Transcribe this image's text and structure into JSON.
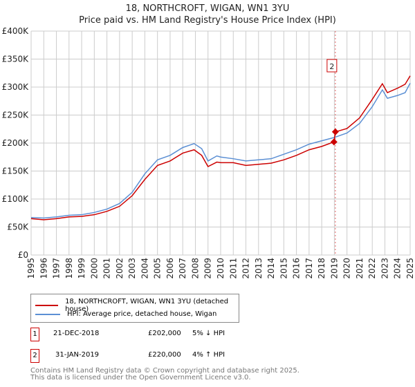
{
  "chart_data": {
    "type": "line",
    "title": "18, NORTHCROFT, WIGAN, WN1 3YU",
    "subtitle": "Price paid vs. HM Land Registry's House Price Index (HPI)",
    "xlim": [
      1995,
      2025
    ],
    "ylim": [
      0,
      400000
    ],
    "x_ticks": [
      "1995",
      "1996",
      "1997",
      "1998",
      "1999",
      "2000",
      "2001",
      "2002",
      "2003",
      "2004",
      "2005",
      "2006",
      "2007",
      "2008",
      "2009",
      "2010",
      "2011",
      "2012",
      "2013",
      "2014",
      "2015",
      "2016",
      "2017",
      "2018",
      "2019",
      "2020",
      "2021",
      "2022",
      "2023",
      "2024",
      "2025"
    ],
    "y_ticks": [
      {
        "v": 0,
        "l": "£0"
      },
      {
        "v": 50000,
        "l": "£50K"
      },
      {
        "v": 100000,
        "l": "£100K"
      },
      {
        "v": 150000,
        "l": "£150K"
      },
      {
        "v": 200000,
        "l": "£200K"
      },
      {
        "v": 250000,
        "l": "£250K"
      },
      {
        "v": 300000,
        "l": "£300K"
      },
      {
        "v": 350000,
        "l": "£350K"
      },
      {
        "v": 400000,
        "l": "£400K"
      }
    ],
    "grid": true,
    "series": [
      {
        "name": "18, NORTHCROFT, WIGAN, WN1 3YU (detached house)",
        "color": "#cc0000",
        "points": [
          [
            1995,
            65000
          ],
          [
            1996,
            63000
          ],
          [
            1997,
            65000
          ],
          [
            1998,
            68000
          ],
          [
            1999,
            69000
          ],
          [
            2000,
            72000
          ],
          [
            2001,
            78000
          ],
          [
            2002,
            87000
          ],
          [
            2003,
            106000
          ],
          [
            2004,
            135000
          ],
          [
            2005,
            160000
          ],
          [
            2006,
            168000
          ],
          [
            2007,
            182000
          ],
          [
            2007.9,
            188000
          ],
          [
            2008.5,
            178000
          ],
          [
            2009,
            158000
          ],
          [
            2009.7,
            166000
          ],
          [
            2010,
            165000
          ],
          [
            2011,
            165000
          ],
          [
            2012,
            160000
          ],
          [
            2013,
            162000
          ],
          [
            2014,
            164000
          ],
          [
            2015,
            170000
          ],
          [
            2016,
            178000
          ],
          [
            2017,
            188000
          ],
          [
            2018,
            194000
          ],
          [
            2018.97,
            202000
          ],
          [
            2019.08,
            220000
          ],
          [
            2020,
            226000
          ],
          [
            2021,
            245000
          ],
          [
            2022,
            278000
          ],
          [
            2022.8,
            306000
          ],
          [
            2023.2,
            290000
          ],
          [
            2024,
            298000
          ],
          [
            2024.6,
            305000
          ],
          [
            2025,
            320000
          ]
        ]
      },
      {
        "name": "HPI: Average price, detached house, Wigan",
        "color": "#5b8fd4",
        "points": [
          [
            1995,
            67000
          ],
          [
            1996,
            66000
          ],
          [
            1997,
            68000
          ],
          [
            1998,
            71000
          ],
          [
            1999,
            72000
          ],
          [
            2000,
            76000
          ],
          [
            2001,
            82000
          ],
          [
            2002,
            92000
          ],
          [
            2003,
            112000
          ],
          [
            2004,
            145000
          ],
          [
            2005,
            170000
          ],
          [
            2006,
            178000
          ],
          [
            2007,
            192000
          ],
          [
            2007.9,
            199000
          ],
          [
            2008.5,
            190000
          ],
          [
            2009,
            168000
          ],
          [
            2009.7,
            177000
          ],
          [
            2010,
            175000
          ],
          [
            2011,
            172000
          ],
          [
            2012,
            168000
          ],
          [
            2013,
            170000
          ],
          [
            2014,
            172000
          ],
          [
            2015,
            180000
          ],
          [
            2016,
            188000
          ],
          [
            2017,
            198000
          ],
          [
            2018,
            204000
          ],
          [
            2019,
            210000
          ],
          [
            2020,
            218000
          ],
          [
            2021,
            235000
          ],
          [
            2022,
            265000
          ],
          [
            2022.8,
            295000
          ],
          [
            2023.2,
            280000
          ],
          [
            2024,
            285000
          ],
          [
            2024.6,
            290000
          ],
          [
            2025,
            307000
          ]
        ]
      }
    ],
    "annotations": [
      {
        "label": "1",
        "x": 2018.97,
        "y": 202000
      },
      {
        "label": "2",
        "x": 2019.08,
        "y": 220000
      }
    ]
  },
  "transactions": [
    {
      "n": "1",
      "date": "21-DEC-2018",
      "price": "£202,000",
      "hpi": "5% ↓ HPI"
    },
    {
      "n": "2",
      "date": "31-JAN-2019",
      "price": "£220,000",
      "hpi": "4% ↑ HPI"
    }
  ],
  "footer": [
    "Contains HM Land Registry data © Crown copyright and database right 2025.",
    "This data is licensed under the Open Government Licence v3.0."
  ]
}
